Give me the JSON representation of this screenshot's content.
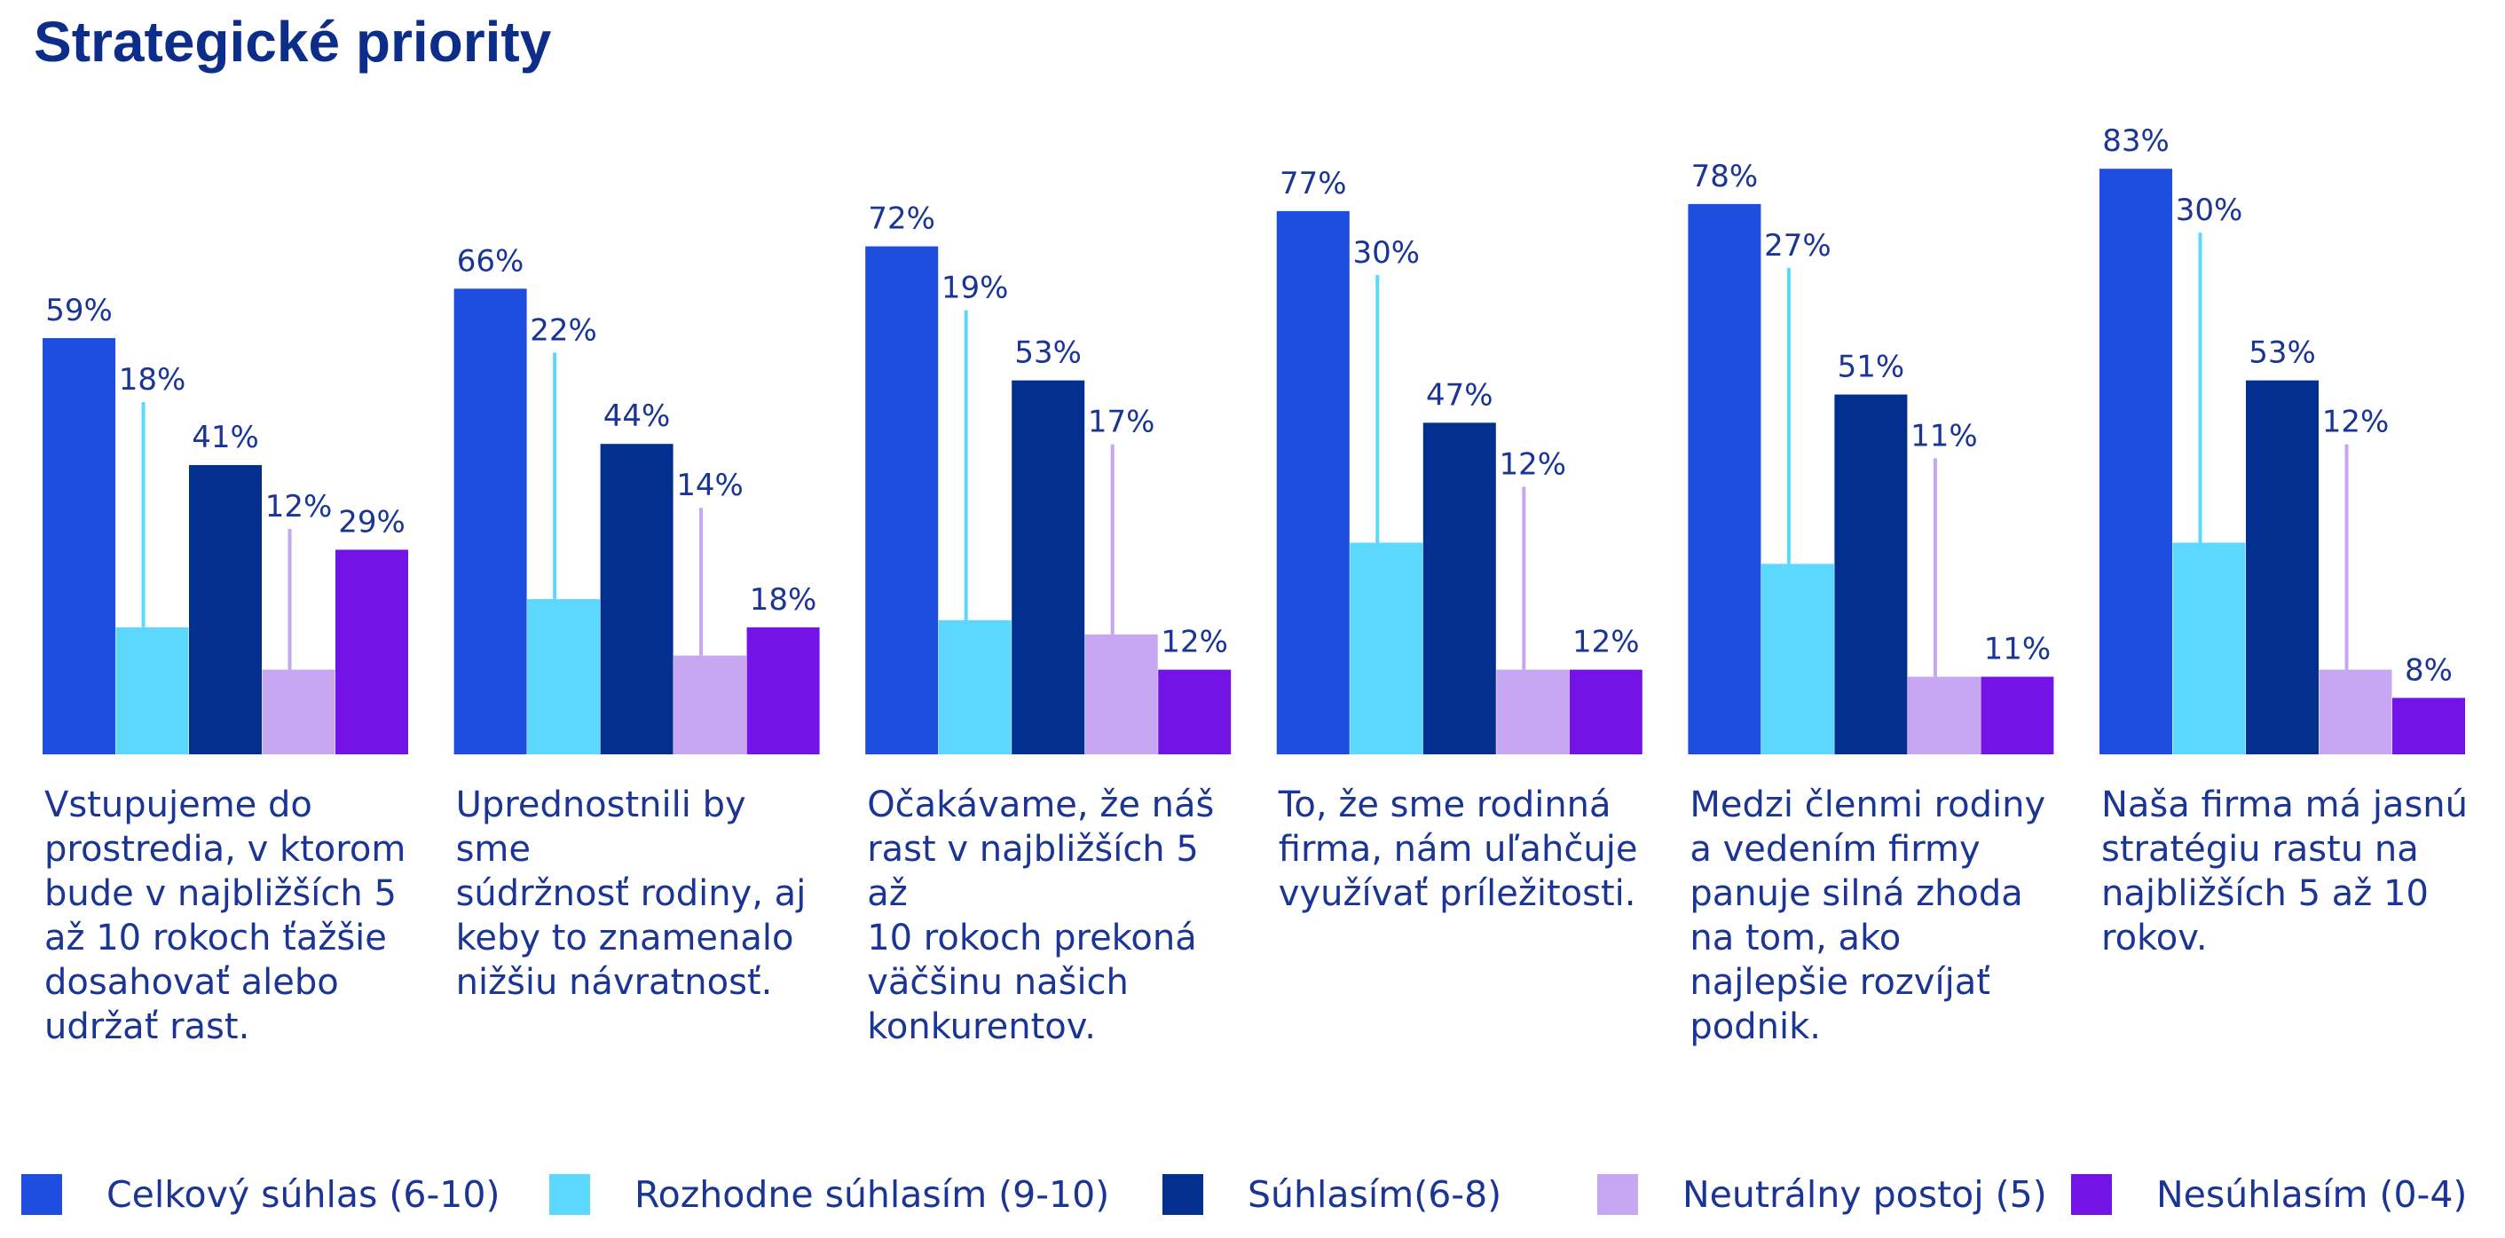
{
  "title": "Strategické priority",
  "colors": {
    "celkovy": "#1f4de0",
    "rozhodne": "#5cd8ff",
    "suhlasim": "#03308f",
    "neutralny": "#c7a6f2",
    "nesuhlasim": "#7413e6",
    "text": "#1a3594"
  },
  "legend": [
    {
      "label": "Celkový súhlas (6-10)",
      "color": "#1f4de0"
    },
    {
      "label": "Rozhodne súhlasím (9-10)",
      "color": "#5cd8ff"
    },
    {
      "label": "Súhlasím(6-8)",
      "color": "#03308f"
    },
    {
      "label": "Neutrálny postoj (5)",
      "color": "#c7a6f2"
    },
    {
      "label": "Nesúhlasím (0-4)",
      "color": "#7413e6"
    }
  ],
  "chart_data": {
    "type": "bar",
    "categories": [
      "Vstupujeme do prostredia, v ktorom bude v najbližších 5 až 10 rokoch ťažšie dosahovať alebo udržať rast.",
      "Uprednostnili by sme súdržnosť rodiny, aj keby to znamenalo nižšiu návratnosť.",
      "Očakávame, že náš rast v najbližších 5 až 10 rokoch prekoná väčšinu našich konkurentov.",
      "To, že sme rodinná firma, nám uľahčuje využívať príležitosti.",
      "Medzi členmi rodiny a vedením firmy panuje silná zhoda na tom, ako najlepšie rozvíjať podnik.",
      "Naša firma má jasnú stratégiu rastu na najbližších 5 až 10 rokov."
    ],
    "category_lines": [
      [
        "Vstupujeme do",
        "prostredia, v ktorom",
        "bude v najbližších 5",
        "až 10 rokoch ťažšie",
        "dosahovať alebo",
        "udržať rast."
      ],
      [
        "Uprednostnili by sme",
        "súdržnosť rodiny, aj",
        "keby to znamenalo",
        "nižšiu návratnosť."
      ],
      [
        "Očakávame, že náš",
        "rast v najbližších 5 až",
        "10 rokoch prekoná",
        "väčšinu našich",
        "konkurentov."
      ],
      [
        "To, že sme rodinná",
        "firma, nám uľahčuje",
        "využívať príležitosti."
      ],
      [
        "Medzi členmi rodiny",
        "a vedením firmy",
        "panuje silná zhoda",
        "na tom, ako",
        "najlepšie rozvíjať",
        "podnik."
      ],
      [
        "Naša firma má jasnú",
        "stratégiu rastu na",
        "najbližších 5 až 10",
        "rokov."
      ]
    ],
    "series": [
      {
        "name": "Celkový súhlas (6-10)",
        "values": [
          59,
          66,
          72,
          77,
          78,
          83
        ]
      },
      {
        "name": "Rozhodne súhlasím (9-10)",
        "values": [
          18,
          22,
          19,
          30,
          27,
          30
        ]
      },
      {
        "name": "Súhlasím(6-8)",
        "values": [
          41,
          44,
          53,
          47,
          51,
          53
        ]
      },
      {
        "name": "Neutrálny postoj (5)",
        "values": [
          12,
          14,
          17,
          12,
          11,
          12
        ]
      },
      {
        "name": "Nesúhlasím (0-4)",
        "values": [
          29,
          18,
          12,
          12,
          11,
          8
        ]
      }
    ],
    "value_suffix": "%",
    "ylim": [
      0,
      100
    ],
    "grid": false,
    "legend_position": "bottom"
  }
}
